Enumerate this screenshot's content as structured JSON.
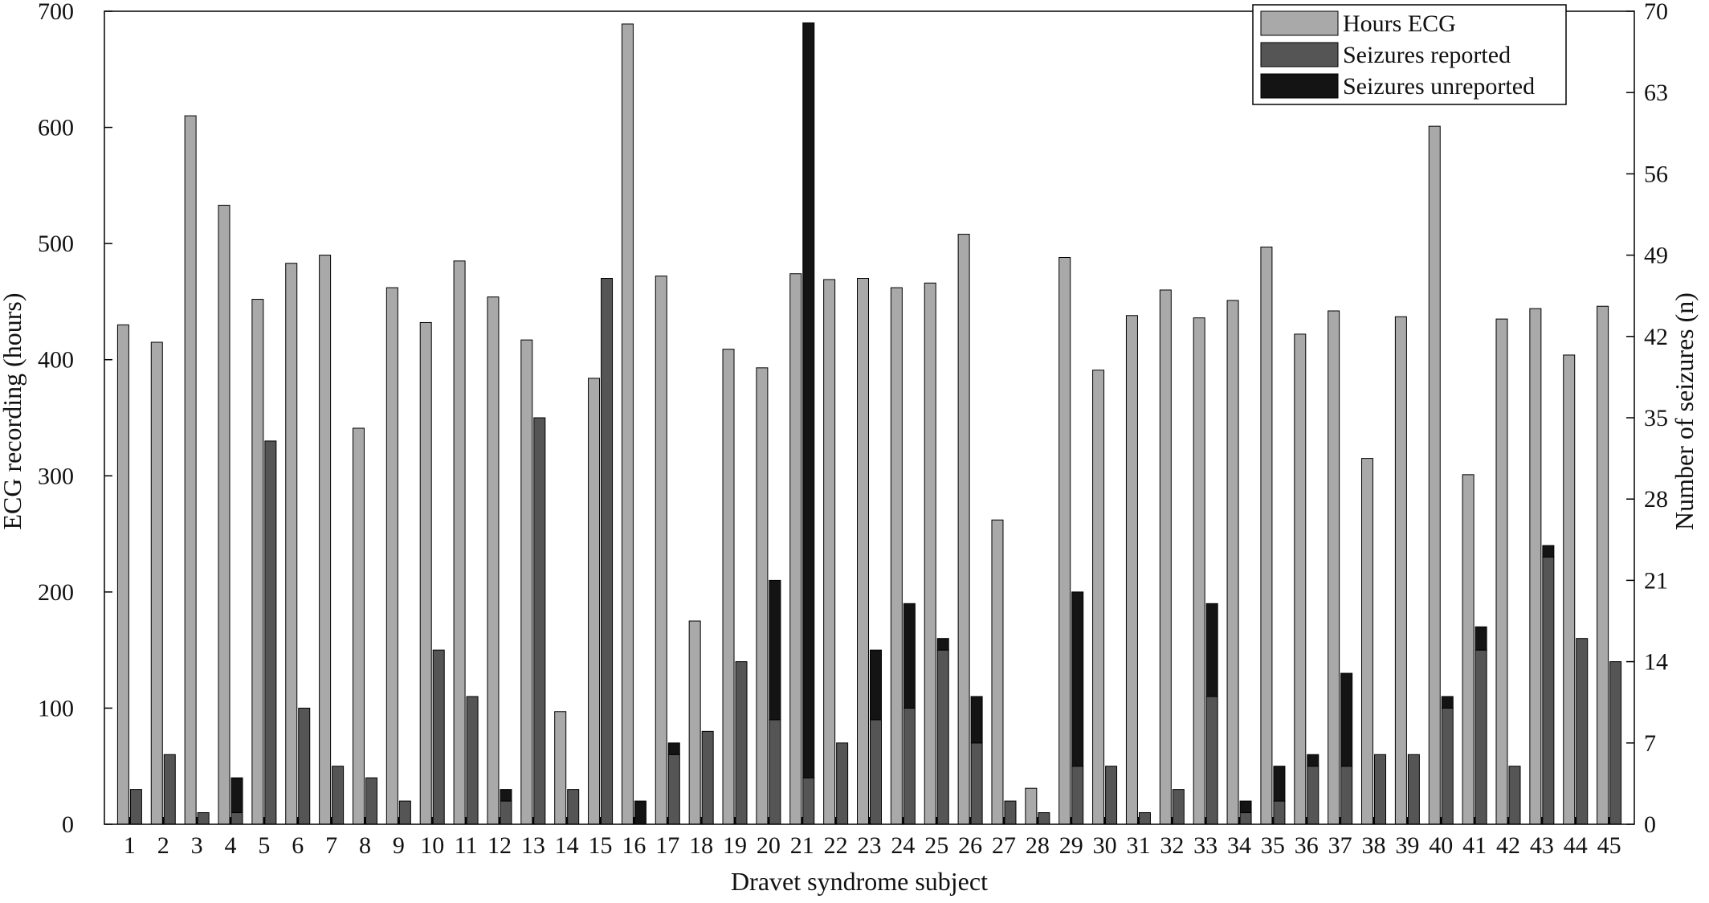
{
  "chart_data": {
    "type": "bar",
    "xlabel": "Dravet syndrome subject",
    "ylabel_left": "ECG recording (hours)",
    "ylabel_right": "Number of seizures (n)",
    "ylim_left": [
      0,
      700
    ],
    "ylim_right": [
      0,
      70
    ],
    "yticks_left": [
      "0",
      "100",
      "200",
      "300",
      "400",
      "500",
      "600",
      "700"
    ],
    "yticks_right": [
      "0",
      "7",
      "14",
      "21",
      "28",
      "35",
      "42",
      "49",
      "56",
      "63",
      "70"
    ],
    "grid": false,
    "legend_position": "top-right",
    "categories": [
      "1",
      "2",
      "3",
      "4",
      "5",
      "6",
      "7",
      "8",
      "9",
      "10",
      "11",
      "12",
      "13",
      "14",
      "15",
      "16",
      "17",
      "18",
      "19",
      "20",
      "21",
      "22",
      "23",
      "24",
      "25",
      "26",
      "27",
      "28",
      "29",
      "30",
      "31",
      "32",
      "33",
      "34",
      "35",
      "36",
      "37",
      "38",
      "39",
      "40",
      "41",
      "42",
      "43",
      "44",
      "45"
    ],
    "series": [
      {
        "name": "Hours ECG",
        "axis": "left",
        "color": "#a9a9a9",
        "values": [
          430,
          415,
          610,
          533,
          452,
          483,
          490,
          341,
          462,
          432,
          485,
          454,
          417,
          97,
          384,
          689,
          472,
          175,
          409,
          393,
          474,
          469,
          470,
          462,
          466,
          508,
          262,
          31,
          488,
          391,
          438,
          460,
          436,
          451,
          497,
          422,
          442,
          315,
          437,
          601,
          301,
          435,
          444,
          404,
          446
        ]
      },
      {
        "name": "Seizures reported",
        "axis": "right",
        "stack": "seizures",
        "color": "#555555",
        "values": [
          3,
          6,
          1,
          1,
          33,
          10,
          5,
          4,
          2,
          15,
          11,
          2,
          35,
          3,
          47,
          0,
          6,
          8,
          14,
          9,
          4,
          7,
          9,
          10,
          15,
          7,
          2,
          1,
          5,
          5,
          1,
          3,
          11,
          1,
          2,
          5,
          5,
          6,
          6,
          10,
          15,
          5,
          23,
          16,
          14
        ]
      },
      {
        "name": "Seizures unreported",
        "axis": "right",
        "stack": "seizures",
        "color": "#141414",
        "values": [
          0,
          0,
          0,
          3,
          0,
          0,
          0,
          0,
          0,
          0,
          0,
          1,
          0,
          0,
          0,
          2,
          1,
          0,
          0,
          12,
          65,
          0,
          6,
          9,
          1,
          4,
          0,
          0,
          15,
          0,
          0,
          0,
          8,
          1,
          3,
          1,
          8,
          0,
          0,
          1,
          2,
          0,
          1,
          0,
          0
        ]
      }
    ]
  }
}
